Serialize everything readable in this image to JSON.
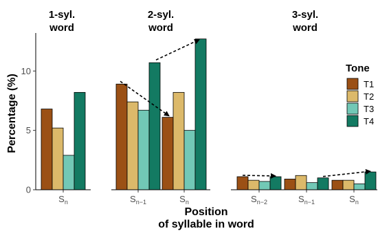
{
  "chart_data": {
    "type": "bar",
    "ylabel": "Percentage (%)",
    "xlabel_line1": "Position",
    "xlabel_line2": "of syllable in word",
    "ylim": [
      0,
      13.2
    ],
    "yticks": [
      0,
      5,
      10
    ],
    "legend": {
      "title": "Tone",
      "position": "right"
    },
    "series": [
      {
        "name": "T1",
        "color": "#9b5015"
      },
      {
        "name": "T2",
        "color": "#dcb96a"
      },
      {
        "name": "T3",
        "color": "#72c8b6"
      },
      {
        "name": "T4",
        "color": "#137a62"
      }
    ],
    "panels": [
      {
        "title_line1": "1-syl.",
        "title_line2": "word",
        "groups": [
          {
            "label_main": "S",
            "label_sub": "n",
            "values": [
              6.8,
              5.2,
              2.9,
              8.2
            ]
          }
        ]
      },
      {
        "title_line1": "2-syl.",
        "title_line2": "word",
        "groups": [
          {
            "label_main": "S",
            "label_sub": "n−1",
            "values": [
              8.9,
              7.4,
              6.7,
              10.7
            ]
          },
          {
            "label_main": "S",
            "label_sub": "n",
            "values": [
              6.1,
              8.2,
              5.0,
              12.7
            ]
          }
        ]
      },
      {
        "title_line1": "3-syl.",
        "title_line2": "word",
        "groups": [
          {
            "label_main": "S",
            "label_sub": "n−2",
            "values": [
              1.1,
              0.8,
              0.7,
              1.1
            ]
          },
          {
            "label_main": "S",
            "label_sub": "n−1",
            "values": [
              0.9,
              1.2,
              0.6,
              1.0
            ]
          },
          {
            "label_main": "S",
            "label_sub": "n",
            "values": [
              0.8,
              0.8,
              0.5,
              1.5
            ]
          }
        ]
      }
    ],
    "annotations": [
      {
        "type": "dashed-arrow",
        "panel": 1,
        "from": {
          "group": 0,
          "tone": 0
        },
        "to": {
          "group": 1,
          "tone": 0
        }
      },
      {
        "type": "dashed-arrow",
        "panel": 1,
        "from": {
          "group": 0,
          "tone": 3
        },
        "to": {
          "group": 1,
          "tone": 3
        }
      },
      {
        "type": "dashed-arrow",
        "panel": 2,
        "from": {
          "group": 0,
          "tone": 0
        },
        "to": {
          "group": 0,
          "tone": 3
        }
      },
      {
        "type": "dashed-arrow",
        "panel": 2,
        "from": {
          "group": 1,
          "tone": 3
        },
        "to": {
          "group": 2,
          "tone": 3
        }
      }
    ]
  }
}
